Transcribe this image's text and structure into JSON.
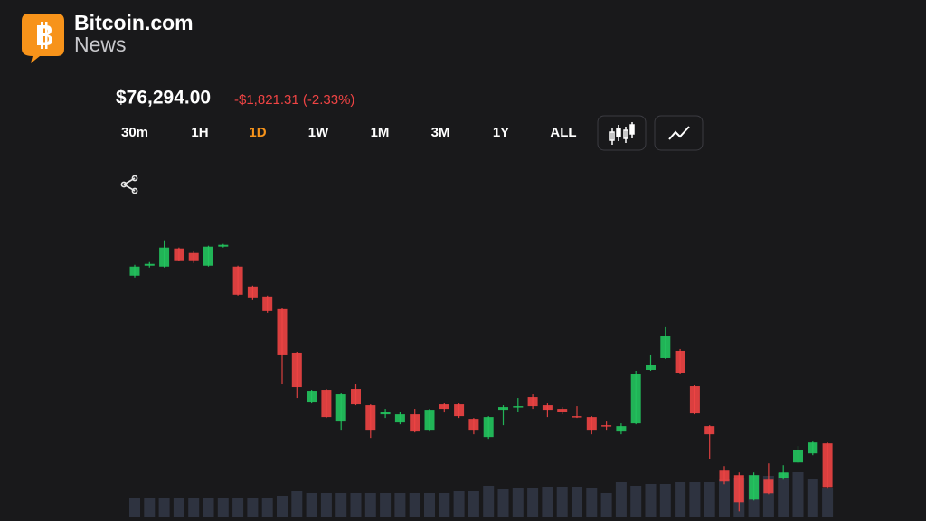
{
  "header": {
    "brand": "Bitcoin.com",
    "subbrand": "News"
  },
  "price": {
    "value": "$76,294.00",
    "change": "-$1,821.31 (-2.33%)"
  },
  "timeframes": {
    "items": [
      "30m",
      "1H",
      "1D",
      "1W",
      "1M",
      "3M",
      "1Y",
      "ALL"
    ],
    "selected_index": 2
  },
  "chart_data": {
    "type": "candlestick",
    "up_color": "#22c55e",
    "down_color": "#ef4444",
    "volume_color": "#2e3340",
    "ylim": [
      74000,
      97500
    ],
    "vlim": [
      0,
      100
    ],
    "open": [
      93775,
      94600,
      94525,
      96025,
      95650,
      94600,
      96175,
      94525,
      92875,
      92050,
      91000,
      87400,
      83350,
      84325,
      81775,
      84400,
      83050,
      82300,
      81625,
      82300,
      81025,
      83125,
      83125,
      81925,
      80425,
      82675,
      82900,
      83725,
      83050,
      82750,
      82150,
      82075,
      81400,
      80875,
      81550,
      85975,
      86950,
      87550,
      84625,
      81325,
      77650,
      77275,
      75250,
      76900,
      77050,
      78325,
      79075,
      79900
    ],
    "high": [
      94675,
      94900,
      96700,
      96100,
      95800,
      96250,
      96400,
      94600,
      92950,
      92125,
      91075,
      87475,
      84325,
      84400,
      84100,
      84775,
      83125,
      82750,
      82525,
      82750,
      82750,
      83275,
      83200,
      82000,
      82150,
      83050,
      83650,
      83950,
      83200,
      82900,
      82975,
      82150,
      81775,
      81550,
      85900,
      87250,
      89575,
      87700,
      84700,
      81400,
      78025,
      77500,
      77500,
      78250,
      78100,
      79675,
      80050,
      79975
    ],
    "low": [
      93625,
      94450,
      94450,
      94975,
      94825,
      94525,
      96100,
      92125,
      91750,
      90700,
      84775,
      83650,
      83200,
      82000,
      81025,
      83050,
      80350,
      82000,
      81475,
      80800,
      80875,
      82450,
      82000,
      80650,
      80275,
      81400,
      82525,
      82750,
      82075,
      82300,
      82000,
      80650,
      81025,
      80650,
      81475,
      85900,
      86875,
      85675,
      82300,
      78625,
      76525,
      74275,
      75175,
      75700,
      76900,
      78250,
      78925,
      76150
    ],
    "close": [
      94525,
      94750,
      96100,
      95050,
      95050,
      96175,
      96325,
      92200,
      91975,
      90850,
      87250,
      84550,
      84250,
      82075,
      83950,
      83125,
      81025,
      82525,
      82300,
      80875,
      82675,
      82750,
      82150,
      81025,
      82075,
      82900,
      82975,
      82975,
      82675,
      82525,
      82075,
      81025,
      81325,
      81325,
      85600,
      86350,
      88750,
      85750,
      82375,
      80650,
      76750,
      75025,
      77275,
      75775,
      77500,
      79375,
      79975,
      76294
    ],
    "volume": [
      21,
      21,
      21,
      21,
      21,
      21,
      21,
      21,
      21,
      21,
      24,
      29,
      27,
      27,
      27,
      27,
      27,
      27,
      27,
      27,
      27,
      27,
      29,
      29,
      35,
      31,
      32,
      33,
      34,
      34,
      34,
      32,
      27,
      39,
      35,
      37,
      37,
      39,
      39,
      39,
      42,
      44,
      47,
      46,
      49,
      50,
      42,
      32
    ]
  }
}
